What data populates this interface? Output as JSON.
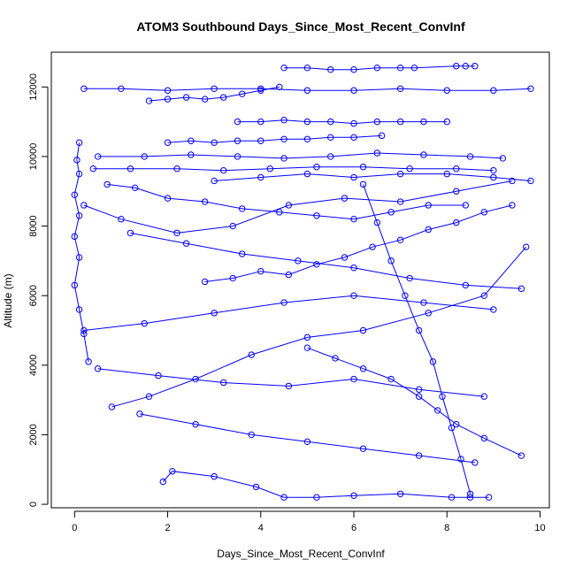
{
  "chart_data": {
    "type": "scatter",
    "title": "ATOM3 Southbound Days_Since_Most_Recent_ConvInf",
    "xlabel": "Days_Since_Most_Recent_ConvInf",
    "ylabel": "Altitude (m)",
    "xlim": [
      -0.5,
      10.2
    ],
    "ylim": [
      -100,
      13000
    ],
    "x_ticks": [
      "0",
      "2",
      "4",
      "6",
      "8",
      "10"
    ],
    "y_ticks": [
      "0",
      "2000",
      "4000",
      "6000",
      "8000",
      "10000",
      "12000"
    ],
    "grid": false,
    "legend": "none",
    "marker": "open-circle",
    "connected": true,
    "color": "#0000ff",
    "series": [
      {
        "x": [
          0.2,
          1.0,
          2.0,
          3.0,
          4.0,
          5.0,
          6.0,
          7.0,
          8.0,
          9.0,
          9.8
        ],
        "y": [
          11950,
          11950,
          11900,
          11950,
          11950,
          11900,
          11900,
          11950,
          11900,
          11900,
          11950
        ]
      },
      {
        "x": [
          4.5,
          5.0,
          5.5,
          6.0,
          6.5,
          7.0,
          7.3,
          8.2,
          8.4,
          8.6
        ],
        "y": [
          12550,
          12550,
          12500,
          12500,
          12550,
          12550,
          12550,
          12600,
          12600,
          12600
        ]
      },
      {
        "x": [
          0.1,
          0.05,
          0.1,
          0.0,
          0.1,
          0.0,
          0.1,
          0.0,
          0.1,
          0.2,
          0.3
        ],
        "y": [
          10400,
          9900,
          9500,
          8900,
          8300,
          7700,
          7100,
          6300,
          5600,
          4900,
          4100
        ]
      },
      {
        "x": [
          0.5,
          1.5,
          2.5,
          3.5,
          4.5,
          5.5,
          6.5,
          7.5,
          8.5,
          9.2
        ],
        "y": [
          10000,
          10000,
          10050,
          10000,
          9950,
          10000,
          10100,
          10050,
          10000,
          9950
        ]
      },
      {
        "x": [
          0.4,
          1.2,
          2.2,
          3.2,
          4.2,
          5.2,
          6.2,
          7.2,
          8.2,
          9.0
        ],
        "y": [
          9650,
          9650,
          9650,
          9600,
          9650,
          9700,
          9700,
          9650,
          9650,
          9600
        ]
      },
      {
        "x": [
          2.0,
          2.5,
          3.0,
          3.5,
          4.0,
          4.5,
          5.0,
          5.5,
          6.0,
          6.6
        ],
        "y": [
          10400,
          10450,
          10400,
          10450,
          10450,
          10500,
          10500,
          10550,
          10550,
          10600
        ]
      },
      {
        "x": [
          3.5,
          4.0,
          4.5,
          5.0,
          5.5,
          6.0,
          6.5,
          7.0,
          7.5,
          8.0
        ],
        "y": [
          11000,
          11000,
          11050,
          11000,
          11000,
          10950,
          11000,
          11000,
          11000,
          11000
        ]
      },
      {
        "x": [
          0.7,
          1.3,
          2.0,
          2.8,
          3.6,
          4.4,
          5.2,
          6.0,
          6.8,
          7.6,
          8.4
        ],
        "y": [
          9200,
          9100,
          8800,
          8700,
          8500,
          8400,
          8300,
          8200,
          8400,
          8600,
          8600
        ]
      },
      {
        "x": [
          6.2,
          6.5,
          6.8,
          7.1,
          7.4,
          7.7,
          7.9,
          8.1,
          8.3,
          8.5
        ],
        "y": [
          9200,
          8100,
          7000,
          6000,
          5000,
          4100,
          3100,
          2200,
          1300,
          300
        ]
      },
      {
        "x": [
          1.2,
          2.4,
          3.6,
          4.8,
          6.0,
          7.2,
          8.4,
          9.6
        ],
        "y": [
          7800,
          7500,
          7200,
          7000,
          6800,
          6500,
          6300,
          6200
        ]
      },
      {
        "x": [
          0.2,
          1.5,
          3.0,
          4.5,
          6.0,
          7.5,
          9.0
        ],
        "y": [
          5000,
          5200,
          5500,
          5800,
          6000,
          5800,
          5600
        ]
      },
      {
        "x": [
          0.5,
          1.8,
          3.2,
          4.6,
          6.0,
          7.4,
          8.8
        ],
        "y": [
          3900,
          3700,
          3500,
          3400,
          3600,
          3300,
          3100
        ]
      },
      {
        "x": [
          1.4,
          2.6,
          3.8,
          5.0,
          6.2,
          7.4,
          8.6
        ],
        "y": [
          2600,
          2300,
          2000,
          1800,
          1600,
          1400,
          1200
        ]
      },
      {
        "x": [
          1.9,
          2.1,
          3.0,
          3.9,
          4.5,
          5.2,
          6.0,
          7.0,
          8.1,
          8.5,
          8.9
        ],
        "y": [
          650,
          950,
          800,
          500,
          200,
          200,
          250,
          300,
          200,
          200,
          200
        ]
      },
      {
        "x": [
          0.2,
          1.0,
          2.2,
          3.4,
          4.6,
          5.8,
          7.0,
          8.2,
          9.4
        ],
        "y": [
          8600,
          8200,
          7800,
          8000,
          8600,
          8800,
          8700,
          9000,
          9300
        ]
      },
      {
        "x": [
          5.0,
          5.6,
          6.2,
          6.8,
          7.4,
          7.8,
          8.2,
          8.8,
          9.6
        ],
        "y": [
          4500,
          4200,
          3900,
          3600,
          3100,
          2700,
          2300,
          1900,
          1400
        ]
      },
      {
        "x": [
          2.8,
          3.4,
          4.0,
          4.6,
          5.2,
          5.8,
          6.4,
          7.0,
          7.6,
          8.2,
          8.8,
          9.4
        ],
        "y": [
          6400,
          6500,
          6700,
          6600,
          6900,
          7100,
          7400,
          7600,
          7900,
          8100,
          8400,
          8600
        ]
      },
      {
        "x": [
          1.6,
          2.0,
          2.4,
          2.8,
          3.2,
          3.6,
          4.0,
          4.4
        ],
        "y": [
          11600,
          11650,
          11700,
          11650,
          11700,
          11800,
          11900,
          12000
        ]
      },
      {
        "x": [
          0.8,
          1.6,
          2.6,
          3.8,
          5.0,
          6.2,
          7.6,
          8.8,
          9.7
        ],
        "y": [
          2800,
          3100,
          3600,
          4300,
          4800,
          5000,
          5500,
          6000,
          7400
        ]
      },
      {
        "x": [
          3.0,
          4.0,
          5.0,
          6.0,
          7.0,
          8.0,
          9.0,
          9.8
        ],
        "y": [
          9300,
          9400,
          9500,
          9400,
          9500,
          9500,
          9400,
          9300
        ]
      }
    ]
  }
}
